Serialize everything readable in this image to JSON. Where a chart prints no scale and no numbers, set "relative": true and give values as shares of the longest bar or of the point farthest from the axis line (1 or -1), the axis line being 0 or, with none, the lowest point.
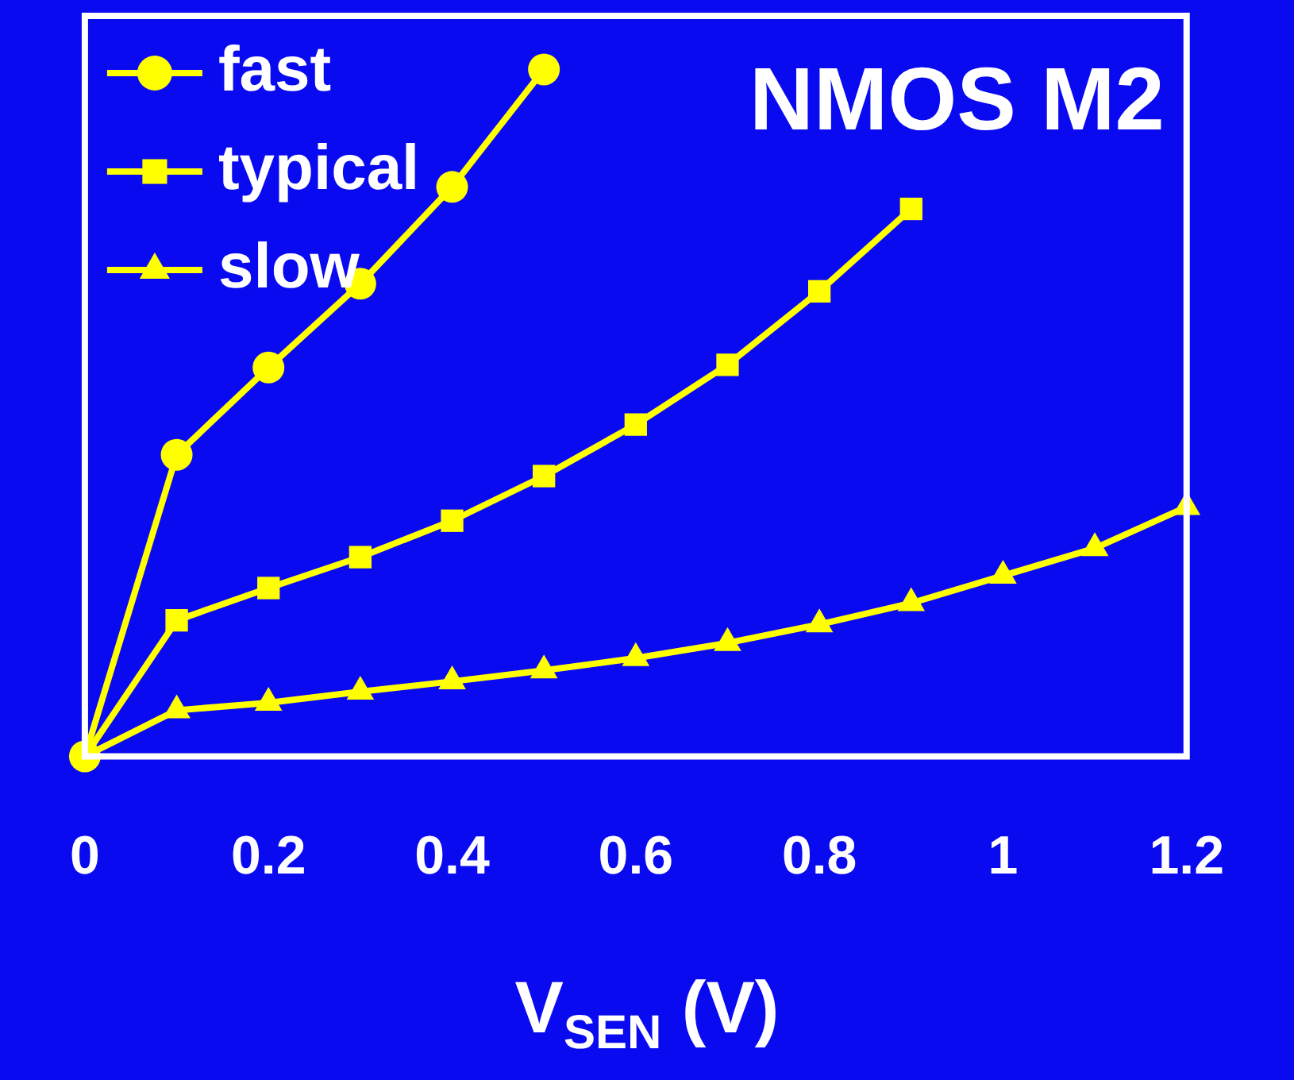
{
  "chart_data": {
    "type": "line",
    "title": "NMOS M2",
    "xlabel": "V$_{SEN}$ (V)",
    "relative": true,
    "xlim": [
      0,
      1.2
    ],
    "xticks": [
      0,
      0.2,
      0.4,
      0.6,
      0.8,
      1,
      1.2
    ],
    "grid": false,
    "legend": "top left",
    "line_style": "solid",
    "series": [
      {
        "name": "fast",
        "color": "#ffff00",
        "marker": "circle",
        "x": [
          0,
          0.1,
          0.2,
          0.3,
          0.4,
          0.5
        ],
        "values": [
          0,
          0.439,
          0.566,
          0.688,
          0.829,
          1
        ]
      },
      {
        "name": "typical",
        "color": "#ffff00",
        "marker": "square",
        "x": [
          0,
          0.1,
          0.2,
          0.3,
          0.4,
          0.5,
          0.6,
          0.7,
          0.8,
          0.9
        ],
        "values": [
          0,
          0.198,
          0.245,
          0.29,
          0.343,
          0.408,
          0.483,
          0.57,
          0.677,
          0.797
        ]
      },
      {
        "name": "slow",
        "color": "#ffff00",
        "marker": "triangle",
        "x": [
          0,
          0.1,
          0.2,
          0.3,
          0.4,
          0.5,
          0.6,
          0.7,
          0.8,
          0.9,
          1,
          1.1,
          1.2
        ],
        "values": [
          0,
          0.067,
          0.078,
          0.094,
          0.109,
          0.125,
          0.143,
          0.165,
          0.192,
          0.223,
          0.263,
          0.303,
          0.363
        ]
      }
    ]
  }
}
